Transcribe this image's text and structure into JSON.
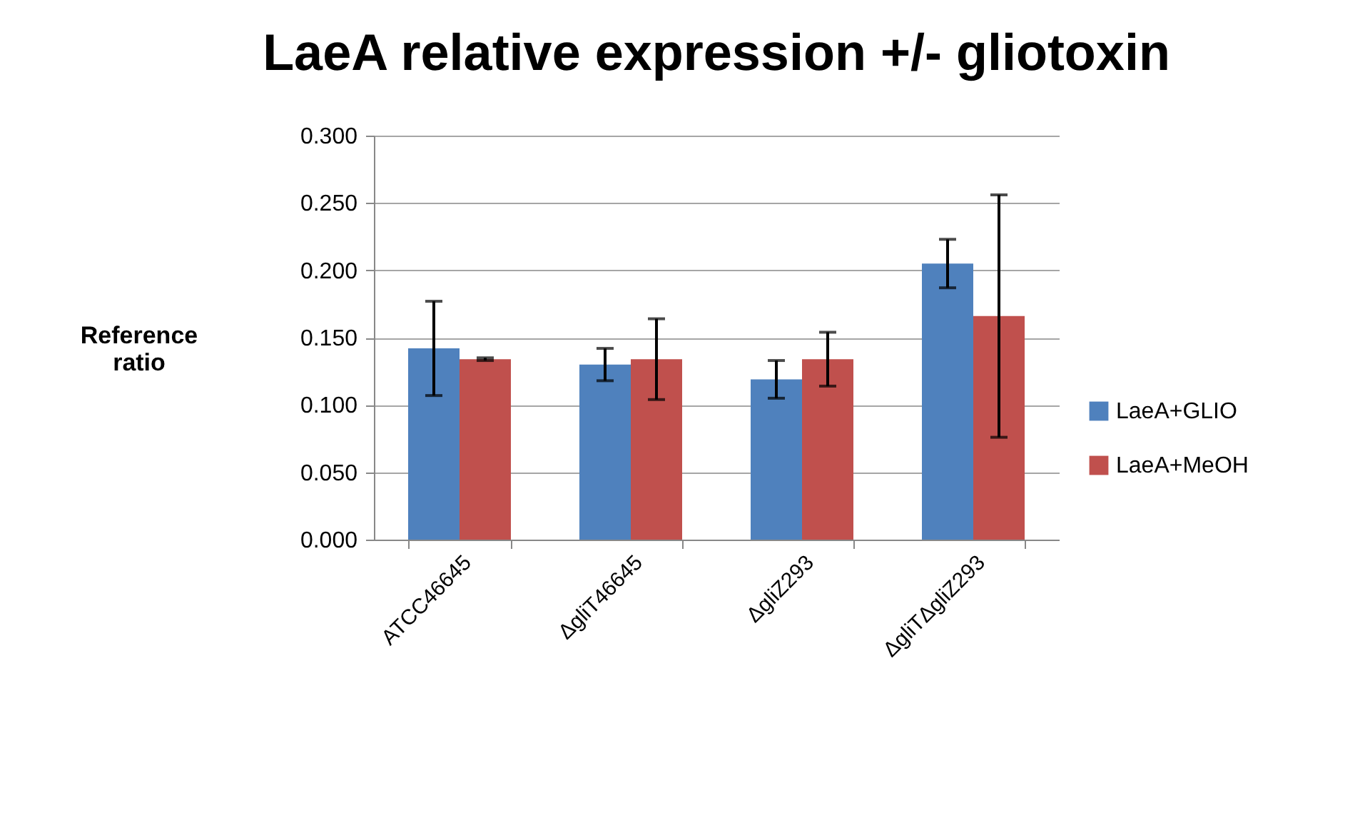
{
  "chart_data": {
    "type": "bar",
    "title": "LaeA relative expression +/- gliotoxin",
    "ylabel": "Reference ratio",
    "categories": [
      "ATCC46645",
      "ΔgliT46645",
      "ΔgliZ293",
      "ΔgliTΔgliZ293"
    ],
    "series": [
      {
        "name": "LaeA+GLIO",
        "color": "#4f81bd",
        "values": [
          0.142,
          0.13,
          0.119,
          0.205
        ],
        "errors": [
          0.035,
          0.012,
          0.014,
          0.018
        ]
      },
      {
        "name": "LaeA+MeOH",
        "color": "#c0504d",
        "values": [
          0.134,
          0.134,
          0.134,
          0.166
        ],
        "errors": [
          0.001,
          0.03,
          0.02,
          0.09
        ]
      }
    ],
    "ylim": [
      0,
      0.3
    ],
    "yticks": [
      {
        "value": 0,
        "label": "0.000"
      },
      {
        "value": 0.05,
        "label": "0.050"
      },
      {
        "value": 0.1,
        "label": "0.100"
      },
      {
        "value": 0.15,
        "label": "0.150"
      },
      {
        "value": 0.2,
        "label": "0.200"
      },
      {
        "value": 0.25,
        "label": "0.250"
      },
      {
        "value": 0.3,
        "label": "0.300"
      }
    ],
    "grid": "y",
    "legend": "right"
  }
}
